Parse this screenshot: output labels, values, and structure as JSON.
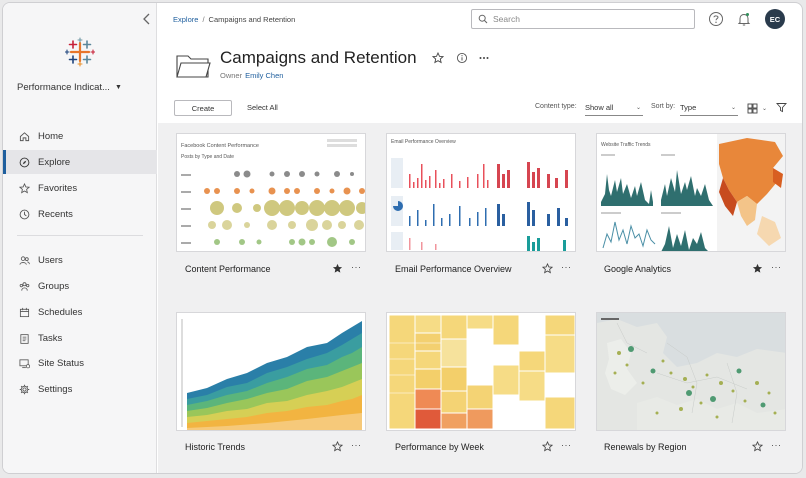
{
  "sidebar": {
    "site_name": "Performance Indicat...",
    "primary_items": [
      {
        "label": "Home",
        "icon": "home-icon"
      },
      {
        "label": "Explore",
        "icon": "explore-icon",
        "active": true
      },
      {
        "label": "Favorites",
        "icon": "star-icon"
      },
      {
        "label": "Recents",
        "icon": "clock-icon"
      }
    ],
    "admin_items": [
      {
        "label": "Users",
        "icon": "users-icon"
      },
      {
        "label": "Groups",
        "icon": "groups-icon"
      },
      {
        "label": "Schedules",
        "icon": "schedules-icon"
      },
      {
        "label": "Tasks",
        "icon": "tasks-icon"
      },
      {
        "label": "Site Status",
        "icon": "site-status-icon"
      },
      {
        "label": "Settings",
        "icon": "settings-icon"
      }
    ]
  },
  "topbar": {
    "breadcrumb": [
      "Explore",
      "Campaigns and Retention"
    ],
    "search_placeholder": "Search",
    "avatar_initials": "EC"
  },
  "header": {
    "title": "Campaigns and Retention",
    "owner_label": "Owner",
    "owner_name": "Emily Chen"
  },
  "toolbar": {
    "create_label": "Create",
    "select_all_label": "Select All",
    "content_type_label": "Content type:",
    "content_type_value": "Show all",
    "sort_label": "Sort by:",
    "sort_value": "Type"
  },
  "cards": [
    {
      "title": "Content Performance",
      "favorited": true,
      "thumb_title": "Facebook Content Performance",
      "thumb_subtitle": "Posts by Type and Date"
    },
    {
      "title": "Email Performance Overview",
      "favorited": false,
      "thumb_title": "Email Performance Overview"
    },
    {
      "title": "Google Analytics",
      "favorited": true,
      "thumb_title": "Website Traffic Trends"
    },
    {
      "title": "Historic Trends",
      "favorited": false
    },
    {
      "title": "Performance by Week",
      "favorited": false
    },
    {
      "title": "Renewals by Region",
      "favorited": false
    }
  ],
  "colors": {
    "accent": "#1f5f9e",
    "avatar_bg": "#2a3b4c",
    "star_filled": "#333333"
  },
  "more_glyph": "···"
}
